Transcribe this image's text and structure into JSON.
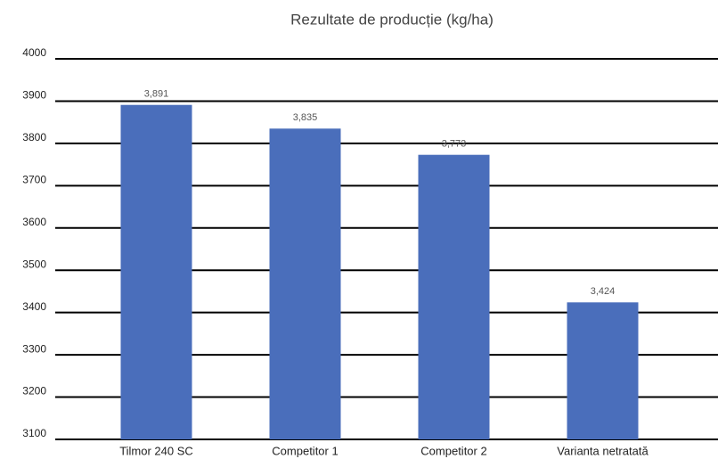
{
  "chart_data": {
    "type": "bar",
    "title": "Rezultate de producție (kg/ha)",
    "categories": [
      "Tilmor 240 SC",
      "Competitor 1",
      "Competitor 2",
      "Varianta netratată"
    ],
    "values": [
      3891,
      3835,
      3773,
      3424
    ],
    "value_labels": [
      "3,891",
      "3,835",
      "3,773",
      "3,424"
    ],
    "color": "#4a6ebb",
    "ylim": [
      3100,
      4000
    ],
    "yticks": [
      3100,
      3200,
      3300,
      3400,
      3500,
      3600,
      3700,
      3800,
      3900,
      4000
    ],
    "grid": true
  }
}
